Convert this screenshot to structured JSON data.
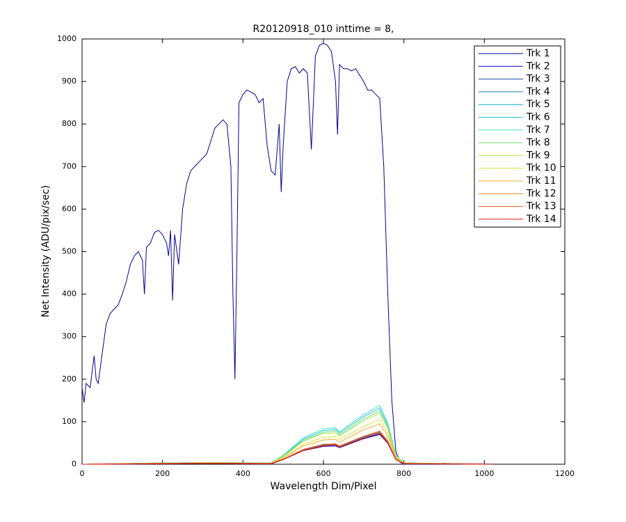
{
  "chart_data": {
    "type": "line",
    "title": "R20120918_010 inttime = 8,",
    "x_label": "Wavelength Dim/Pixel",
    "y_label": "Net Intensity (ADU/pix/sec)",
    "xlim": [
      0,
      1200
    ],
    "ylim": [
      0,
      1000
    ],
    "xticks": [
      0,
      200,
      400,
      600,
      800,
      1000,
      1200
    ],
    "yticks": [
      0,
      100,
      200,
      300,
      400,
      500,
      600,
      700,
      800,
      900,
      1000
    ],
    "grid": false,
    "legend": "upper right",
    "series": [
      {
        "name": "Trk 1",
        "color": "#00008f",
        "x": [
          0,
          5,
          10,
          20,
          30,
          35,
          40,
          50,
          60,
          70,
          80,
          90,
          100,
          110,
          120,
          130,
          140,
          150,
          155,
          160,
          170,
          180,
          190,
          200,
          210,
          215,
          220,
          225,
          230,
          240,
          250,
          260,
          270,
          280,
          290,
          300,
          310,
          320,
          330,
          340,
          350,
          360,
          370,
          375,
          380,
          385,
          390,
          400,
          410,
          420,
          430,
          440,
          450,
          460,
          470,
          480,
          490,
          495,
          500,
          510,
          520,
          530,
          540,
          550,
          560,
          570,
          580,
          590,
          600,
          610,
          620,
          630,
          635,
          640,
          650,
          660,
          670,
          680,
          690,
          700,
          710,
          720,
          730,
          740,
          750,
          760,
          770,
          780,
          790,
          800,
          850,
          900,
          950,
          1000,
          1024
        ],
        "values": [
          180,
          145,
          190,
          180,
          255,
          200,
          190,
          260,
          330,
          355,
          365,
          375,
          400,
          430,
          470,
          490,
          500,
          480,
          400,
          510,
          520,
          545,
          550,
          540,
          520,
          490,
          550,
          385,
          540,
          470,
          600,
          660,
          690,
          700,
          710,
          720,
          730,
          760,
          790,
          800,
          810,
          800,
          700,
          400,
          200,
          500,
          850,
          870,
          880,
          875,
          870,
          850,
          860,
          750,
          690,
          680,
          800,
          640,
          750,
          900,
          930,
          935,
          920,
          930,
          920,
          740,
          960,
          985,
          990,
          985,
          970,
          900,
          775,
          940,
          930,
          930,
          925,
          930,
          915,
          900,
          880,
          880,
          870,
          860,
          700,
          400,
          150,
          30,
          5,
          0,
          0,
          2,
          1,
          1,
          0
        ]
      },
      {
        "name": "Trk 2",
        "color": "#0000c8",
        "x": [
          0,
          200,
          300,
          470,
          500,
          550,
          600,
          630,
          640,
          700,
          740,
          760,
          780,
          800,
          1020
        ],
        "values": [
          0,
          1,
          2,
          1,
          11,
          32,
          42,
          43,
          39,
          60,
          70,
          49,
          11,
          1,
          0
        ]
      },
      {
        "name": "Trk 3",
        "color": "#1a4fb0",
        "x": [
          0,
          200,
          300,
          470,
          500,
          550,
          600,
          630,
          640,
          700,
          740,
          760,
          780,
          800,
          1020
        ],
        "values": [
          0,
          1,
          2,
          1,
          11,
          33,
          44,
          45,
          40,
          62,
          73,
          51,
          11,
          1,
          0
        ]
      },
      {
        "name": "Trk 4",
        "color": "#1a7fa0",
        "x": [
          0,
          200,
          300,
          470,
          500,
          550,
          600,
          630,
          640,
          700,
          740,
          760,
          780,
          800,
          1020
        ],
        "values": [
          0,
          2,
          2,
          2,
          11,
          34,
          45,
          47,
          41,
          64,
          75,
          53,
          11,
          2,
          0
        ]
      },
      {
        "name": "Trk 5",
        "color": "#10a8c0",
        "x": [
          0,
          200,
          300,
          470,
          500,
          550,
          600,
          630,
          640,
          700,
          740,
          760,
          780,
          800,
          1020
        ],
        "values": [
          0,
          2,
          2,
          2,
          12,
          35,
          47,
          48,
          43,
          66,
          78,
          55,
          12,
          2,
          0
        ]
      },
      {
        "name": "Trk 6",
        "color": "#20c8d8",
        "x": [
          0,
          200,
          300,
          470,
          500,
          550,
          600,
          630,
          640,
          700,
          740,
          760,
          780,
          800,
          1020
        ],
        "values": [
          0,
          3,
          4,
          3,
          20,
          59,
          79,
          82,
          73,
          112,
          132,
          92,
          20,
          3,
          0
        ]
      },
      {
        "name": "Trk 7",
        "color": "#40e0d0",
        "x": [
          0,
          200,
          300,
          470,
          500,
          550,
          600,
          630,
          640,
          700,
          740,
          760,
          780,
          800,
          1020
        ],
        "values": [
          0,
          3,
          4,
          3,
          21,
          62,
          83,
          86,
          76,
          117,
          138,
          97,
          21,
          3,
          0
        ]
      },
      {
        "name": "Trk 8",
        "color": "#70e070",
        "x": [
          0,
          200,
          300,
          470,
          500,
          550,
          600,
          630,
          640,
          700,
          740,
          760,
          780,
          800,
          1020
        ],
        "values": [
          0,
          3,
          4,
          3,
          19,
          56,
          75,
          78,
          69,
          106,
          125,
          88,
          19,
          3,
          0
        ]
      },
      {
        "name": "Trk 9",
        "color": "#b8e050",
        "x": [
          0,
          200,
          300,
          470,
          500,
          550,
          600,
          630,
          640,
          700,
          740,
          760,
          780,
          800,
          1020
        ],
        "values": [
          0,
          2,
          4,
          2,
          18,
          54,
          72,
          74,
          66,
          102,
          120,
          84,
          18,
          2,
          0
        ]
      },
      {
        "name": "Trk 10",
        "color": "#e0e030",
        "x": [
          0,
          200,
          300,
          470,
          500,
          550,
          600,
          630,
          640,
          700,
          740,
          760,
          780,
          800,
          1020
        ],
        "values": [
          0,
          2,
          3,
          2,
          16,
          47,
          63,
          65,
          58,
          89,
          105,
          74,
          16,
          2,
          0
        ]
      },
      {
        "name": "Trk 11",
        "color": "#f0b030",
        "x": [
          0,
          200,
          300,
          470,
          500,
          550,
          600,
          630,
          640,
          700,
          740,
          760,
          780,
          800,
          1020
        ],
        "values": [
          0,
          2,
          3,
          2,
          14,
          43,
          57,
          59,
          52,
          81,
          95,
          67,
          14,
          2,
          0
        ]
      },
      {
        "name": "Trk 12",
        "color": "#f08030",
        "x": [
          0,
          200,
          300,
          470,
          500,
          550,
          600,
          630,
          640,
          700,
          740,
          760,
          780,
          800,
          1020
        ],
        "values": [
          0,
          2,
          2,
          2,
          12,
          35,
          47,
          48,
          43,
          66,
          78,
          55,
          12,
          2,
          0
        ]
      },
      {
        "name": "Trk 13",
        "color": "#e85020",
        "x": [
          0,
          200,
          300,
          470,
          500,
          550,
          600,
          630,
          640,
          700,
          740,
          760,
          780,
          800,
          1020
        ],
        "values": [
          0,
          2,
          2,
          2,
          11,
          34,
          46,
          47,
          42,
          65,
          76,
          53,
          11,
          2,
          0
        ]
      },
      {
        "name": "Trk 14",
        "color": "#e01818",
        "x": [
          0,
          200,
          300,
          470,
          500,
          550,
          600,
          630,
          640,
          700,
          740,
          760,
          780,
          800,
          1020
        ],
        "values": [
          0,
          1,
          2,
          1,
          11,
          32,
          43,
          45,
          40,
          61,
          72,
          50,
          11,
          1,
          0
        ]
      }
    ]
  }
}
